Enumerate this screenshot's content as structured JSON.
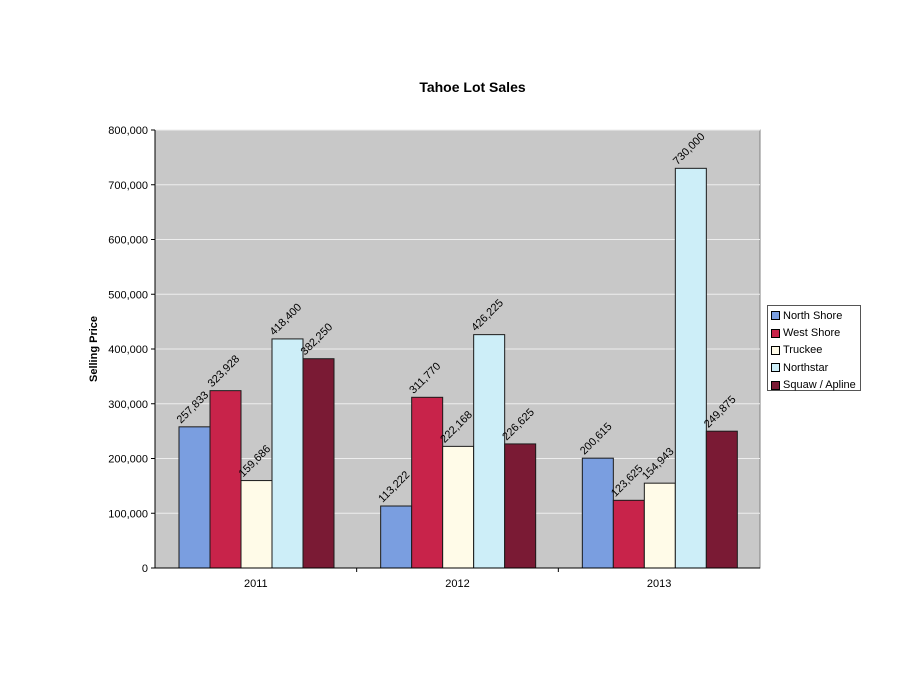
{
  "chart_data": {
    "type": "bar",
    "title": "Tahoe Lot Sales",
    "xlabel": "",
    "ylabel": "Selling Price",
    "ylim": [
      0,
      800000
    ],
    "yticks": [
      "0",
      "100,000",
      "200,000",
      "300,000",
      "400,000",
      "500,000",
      "600,000",
      "700,000",
      "800,000"
    ],
    "categories": [
      "2011",
      "2012",
      "2013"
    ],
    "grid": true,
    "legend": "right",
    "series": [
      {
        "name": "North Shore",
        "color": "#7a9ee0",
        "values": [
          257833,
          113222,
          200615
        ],
        "labels": [
          "257,833",
          "113,222",
          "200,615"
        ]
      },
      {
        "name": "West Shore",
        "color": "#c8234a",
        "values": [
          323928,
          311770,
          123625
        ],
        "labels": [
          "323,928",
          "311,770",
          "123,625"
        ]
      },
      {
        "name": "Truckee",
        "color": "#fffbe8",
        "values": [
          159686,
          222168,
          154943
        ],
        "labels": [
          "159,686",
          "222,168",
          "154,943"
        ]
      },
      {
        "name": "Northstar",
        "color": "#cdeef8",
        "values": [
          418400,
          426225,
          730000
        ],
        "labels": [
          "418,400",
          "426,225",
          "730,000"
        ]
      },
      {
        "name": "Squaw / Apline",
        "color": "#7a1a34",
        "values": [
          382250,
          226625,
          249875
        ],
        "labels": [
          "382,250",
          "226,625",
          "249,875"
        ]
      }
    ]
  }
}
